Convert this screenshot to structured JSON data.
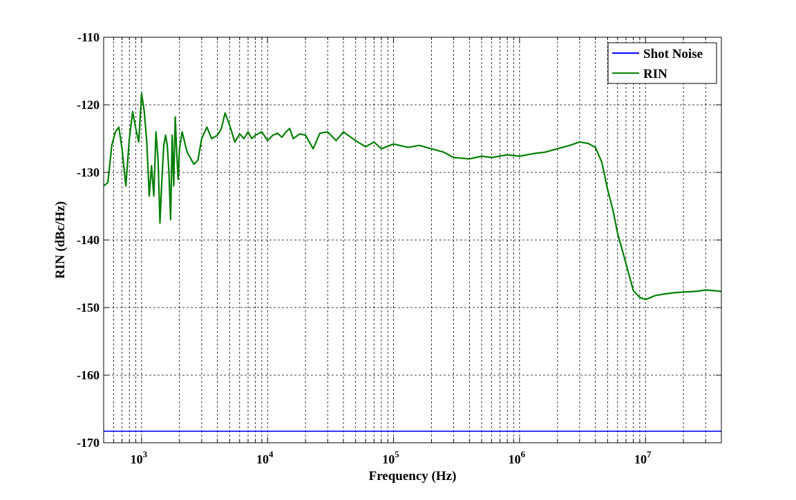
{
  "chart_data": {
    "type": "line",
    "title": "",
    "xlabel": "Frequency (Hz)",
    "ylabel": "RIN (dBc/Hz)",
    "xscale": "log",
    "xlim": [
      500,
      40000000
    ],
    "ylim": [
      -170,
      -110
    ],
    "grid": true,
    "legend_position": "top-right",
    "x_ticks": [
      {
        "value": 1000,
        "base": "10",
        "exp": "3"
      },
      {
        "value": 10000,
        "base": "10",
        "exp": "4"
      },
      {
        "value": 100000,
        "base": "10",
        "exp": "5"
      },
      {
        "value": 1000000,
        "base": "10",
        "exp": "6"
      },
      {
        "value": 10000000,
        "base": "10",
        "exp": "7"
      }
    ],
    "y_ticks": [
      {
        "value": -110,
        "label": "-110"
      },
      {
        "value": -120,
        "label": "-120"
      },
      {
        "value": -130,
        "label": "-130"
      },
      {
        "value": -140,
        "label": "-140"
      },
      {
        "value": -150,
        "label": "-150"
      },
      {
        "value": -160,
        "label": "-160"
      },
      {
        "value": -170,
        "label": "-170"
      }
    ],
    "series": [
      {
        "name": "Shot Noise",
        "color": "#0000ff",
        "x": [
          500,
          40000000
        ],
        "y": [
          -168.3,
          -168.3
        ]
      },
      {
        "name": "RIN",
        "color": "#007f00",
        "x": [
          500,
          540,
          580,
          620,
          660,
          700,
          750,
          800,
          850,
          900,
          950,
          1000,
          1050,
          1100,
          1150,
          1200,
          1250,
          1300,
          1350,
          1400,
          1450,
          1500,
          1550,
          1600,
          1650,
          1700,
          1750,
          1800,
          1850,
          1900,
          1950,
          2000,
          2100,
          2300,
          2600,
          2800,
          3000,
          3300,
          3600,
          4000,
          4300,
          4600,
          5000,
          5500,
          6000,
          6500,
          7000,
          7500,
          8000,
          9000,
          10000,
          11000,
          12000,
          13000,
          14000,
          15000,
          16000,
          18000,
          20000,
          23000,
          26000,
          30000,
          35000,
          40000,
          50000,
          60000,
          70000,
          80000,
          100000,
          130000,
          160000,
          200000,
          250000,
          300000,
          400000,
          500000,
          600000,
          800000,
          1000000,
          1300000,
          1600000,
          2000000,
          2500000,
          3000000,
          3500000,
          4000000,
          4500000,
          5000000,
          5500000,
          6000000,
          7000000,
          8000000,
          9000000,
          10000000,
          11000000,
          12000000,
          14000000,
          17000000,
          20000000,
          25000000,
          30000000,
          35000000,
          40000000
        ],
        "y": [
          -132,
          -131.5,
          -126,
          -124,
          -123.3,
          -126.5,
          -132,
          -125,
          -121,
          -123.5,
          -125.5,
          -118.3,
          -121,
          -125.5,
          -133.5,
          -129,
          -133.5,
          -124,
          -128,
          -137.5,
          -131,
          -126,
          -124.5,
          -126,
          -130,
          -137,
          -124.5,
          -132,
          -121.8,
          -127,
          -131,
          -126.5,
          -124,
          -127,
          -128.8,
          -128.2,
          -125,
          -123.3,
          -125,
          -124.5,
          -123.5,
          -121.2,
          -123,
          -125.5,
          -124.3,
          -125,
          -124,
          -125,
          -124.5,
          -124,
          -125.3,
          -124.5,
          -124.2,
          -124.8,
          -124,
          -123.5,
          -125,
          -124.3,
          -124.5,
          -126.5,
          -124.2,
          -124,
          -125.3,
          -124,
          -125.3,
          -126.2,
          -125.5,
          -126.5,
          -125.8,
          -126.3,
          -126,
          -126.5,
          -127,
          -127.8,
          -128,
          -127.6,
          -127.8,
          -127.4,
          -127.6,
          -127.2,
          -127,
          -126.5,
          -126,
          -125.5,
          -125.7,
          -126.3,
          -128.5,
          -132.5,
          -135.5,
          -139,
          -143.5,
          -147.5,
          -148.5,
          -148.8,
          -148.5,
          -148.2,
          -148,
          -147.8,
          -147.7,
          -147.6,
          -147.4,
          -147.5,
          -147.6
        ]
      }
    ]
  }
}
